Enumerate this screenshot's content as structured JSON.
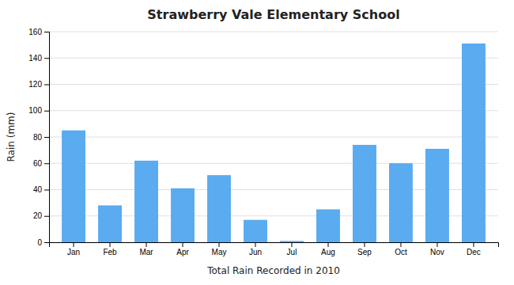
{
  "chart_data": {
    "type": "bar",
    "title": "Strawberry Vale Elementary School",
    "xlabel": "Total Rain Recorded in 2010",
    "ylabel": "Rain (mm)",
    "categories": [
      "Jan",
      "Feb",
      "Mar",
      "Apr",
      "May",
      "Jun",
      "Jul",
      "Aug",
      "Sep",
      "Oct",
      "Nov",
      "Dec"
    ],
    "values": [
      85,
      28,
      62,
      41,
      51,
      17,
      1,
      25,
      74,
      60,
      71,
      151
    ],
    "color": "#5aabf0",
    "ylim": [
      0,
      160
    ],
    "yticks": [
      0,
      20,
      40,
      60,
      80,
      100,
      120,
      140,
      160
    ],
    "grid": true
  }
}
